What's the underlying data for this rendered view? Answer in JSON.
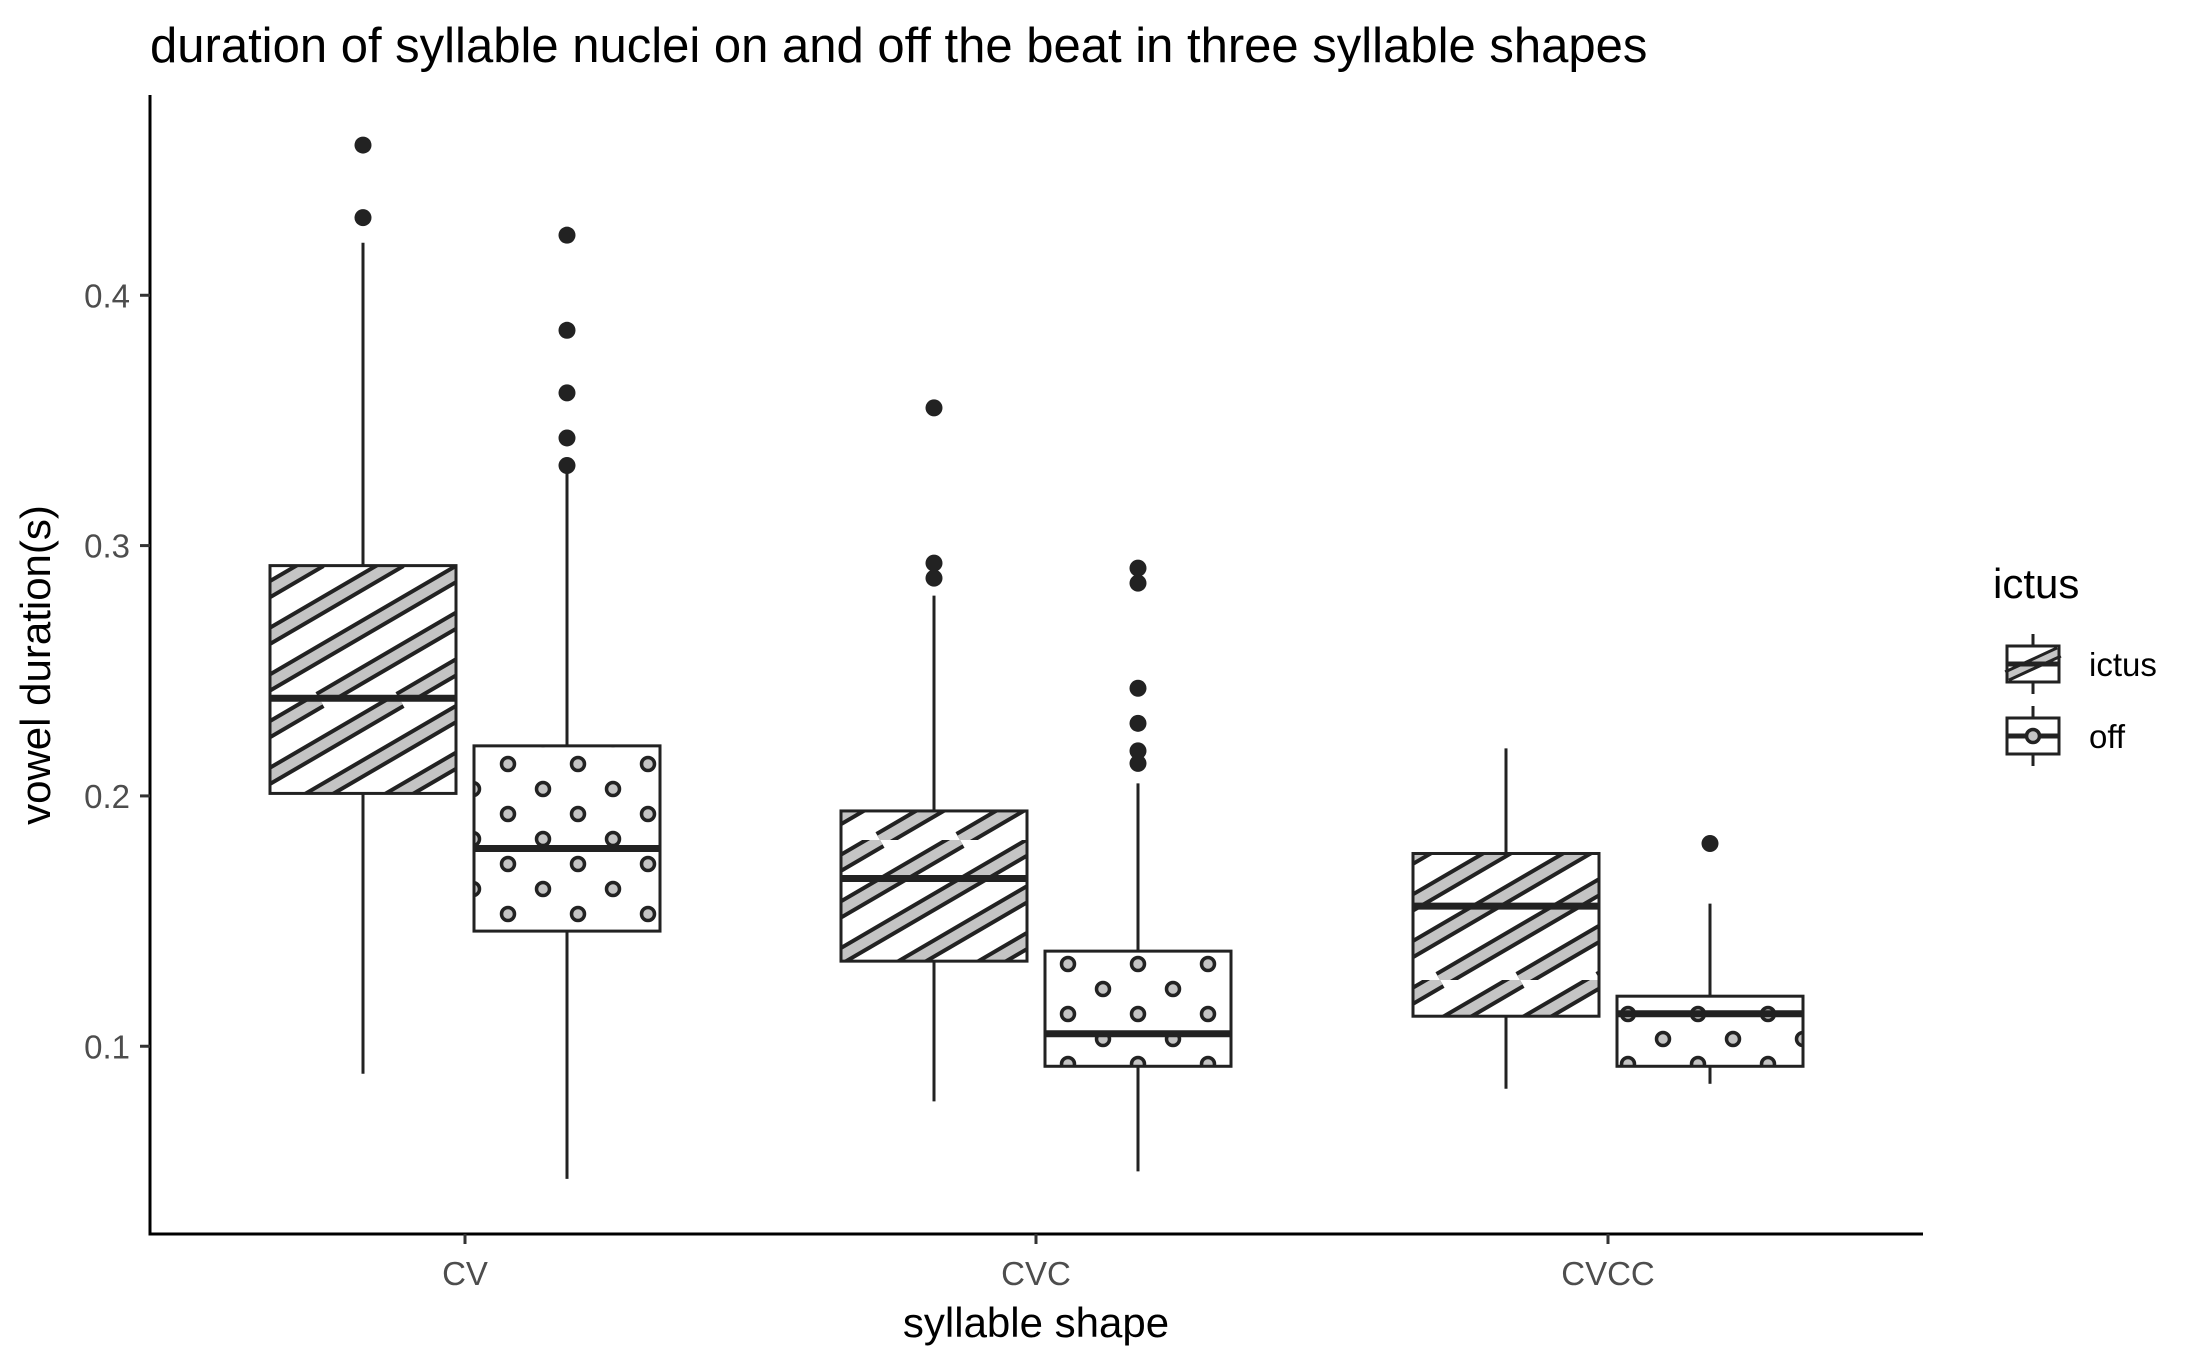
{
  "chart_data": {
    "type": "boxplot",
    "title": "duration of syllable nuclei on and off the beat in three syllable shapes",
    "xlabel": "syllable shape",
    "ylabel": "vowel duration(s)",
    "ylim": [
      0.025,
      0.48
    ],
    "yticks": [
      0.1,
      0.2,
      0.3,
      0.4
    ],
    "ytick_labels": [
      "0.1",
      "0.2",
      "0.3",
      "0.4"
    ],
    "categories": [
      "CV",
      "CVC",
      "CVCC"
    ],
    "grid": false,
    "legend": {
      "title": "ictus",
      "position": "right",
      "entries": [
        {
          "label": "ictus",
          "pattern": "stripe"
        },
        {
          "label": "off",
          "pattern": "dots"
        }
      ]
    },
    "colors": {
      "box_fill": "#ffffff",
      "box_line": "#222222",
      "stripe": "#c4c4c4",
      "outlier": "#222222"
    },
    "series": [
      {
        "name": "ictus",
        "pattern": "stripe",
        "boxes": [
          {
            "category": "CV",
            "whisker_low": 0.089,
            "q1": 0.201,
            "median": 0.239,
            "q3": 0.292,
            "whisker_high": 0.421,
            "outliers": [
              0.431,
              0.46
            ]
          },
          {
            "category": "CVC",
            "whisker_low": 0.078,
            "q1": 0.134,
            "median": 0.167,
            "q3": 0.194,
            "whisker_high": 0.28,
            "outliers": [
              0.287,
              0.293,
              0.355
            ]
          },
          {
            "category": "CVCC",
            "whisker_low": 0.083,
            "q1": 0.112,
            "median": 0.156,
            "q3": 0.177,
            "whisker_high": 0.219,
            "outliers": []
          }
        ]
      },
      {
        "name": "off",
        "pattern": "dots",
        "boxes": [
          {
            "category": "CV",
            "whisker_low": 0.047,
            "q1": 0.146,
            "median": 0.179,
            "q3": 0.22,
            "whisker_high": 0.329,
            "outliers": [
              0.332,
              0.343,
              0.361,
              0.386,
              0.424
            ]
          },
          {
            "category": "CVC",
            "whisker_low": 0.05,
            "q1": 0.092,
            "median": 0.105,
            "q3": 0.138,
            "whisker_high": 0.205,
            "outliers": [
              0.213,
              0.218,
              0.229,
              0.243,
              0.285,
              0.291
            ]
          },
          {
            "category": "CVCC",
            "whisker_low": 0.085,
            "q1": 0.092,
            "median": 0.113,
            "q3": 0.12,
            "whisker_high": 0.157,
            "outliers": [
              0.181
            ]
          }
        ]
      }
    ]
  }
}
